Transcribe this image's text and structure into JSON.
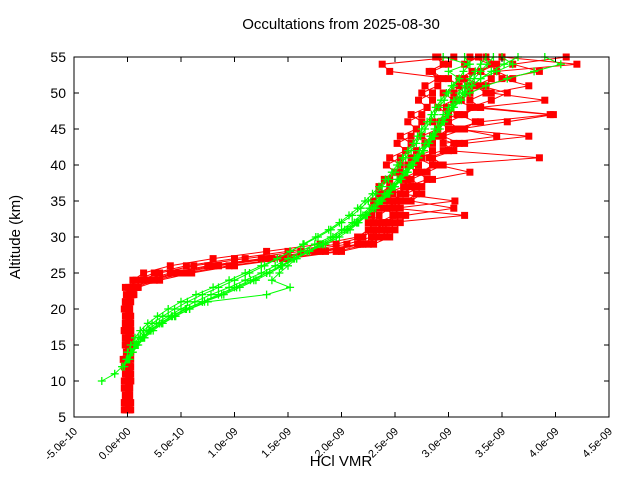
{
  "title": "Occultations from 2025-08-30",
  "axes": {
    "xlabel": "HCl VMR",
    "ylabel": "Altitude (km)",
    "x_tick_labels": [
      "-5.0e-10",
      "0.0e+00",
      "5.0e-10",
      "1.0e-09",
      "1.5e-09",
      "2.0e-09",
      "2.5e-09",
      "3.0e-09",
      "3.5e-09",
      "4.0e-09",
      "4.5e-09"
    ],
    "x_tick_values_1e9": [
      -0.5,
      0,
      0.5,
      1,
      1.5,
      2,
      2.5,
      3,
      3.5,
      4,
      4.5
    ],
    "y_tick_labels": [
      "5",
      "10",
      "15",
      "20",
      "25",
      "30",
      "35",
      "40",
      "45",
      "50",
      "55"
    ],
    "y_tick_values_km": [
      5,
      10,
      15,
      20,
      25,
      30,
      35,
      40,
      45,
      50,
      55
    ]
  },
  "chart_data": {
    "type": "line",
    "title": "Occultations from 2025-08-30",
    "xlabel": "HCl VMR",
    "ylabel": "Altitude (km)",
    "xlim_1e9": [
      -0.5,
      4.5
    ],
    "ylim_km": [
      5,
      55
    ],
    "grid": false,
    "legend": "none",
    "x_units": "mol/mol, labels in scientific notation",
    "series": [
      {
        "name": "occultation-profiles-red",
        "color": "#ff0000",
        "marker": "filled-square",
        "line": "solid",
        "profiles": [
          {
            "start_alt_km": 6,
            "step_km": 1,
            "vmr_1e9": [
              0.02,
              -0.03,
              0.01,
              -0.02,
              0.03,
              -0.01,
              0.02,
              -0.04,
              0.01,
              0.02,
              -0.02,
              0.03,
              -0.01,
              0.01,
              -0.03,
              0.02,
              0.04,
              -0.02,
              0.12,
              0.3,
              0.62,
              1.1,
              1.62,
              2.05,
              2.28,
              2.32,
              2.38,
              2.35,
              2.45,
              2.5,
              2.42,
              2.58,
              2.62,
              2.55,
              2.72,
              2.65,
              2.85,
              2.78,
              2.9,
              3.0,
              2.92,
              3.08,
              2.98,
              3.12,
              3.05,
              3.18,
              3.1,
              3.22,
              3.15,
              3.28
            ]
          },
          {
            "start_alt_km": 6,
            "step_km": 1,
            "vmr_1e9": [
              -0.02,
              0.03,
              -0.01,
              0.02,
              -0.03,
              0.01,
              0.03,
              -0.02,
              0.02,
              -0.01,
              0.03,
              -0.03,
              0.01,
              0.02,
              -0.02,
              0.01,
              0.05,
              0.08,
              0.25,
              0.55,
              0.95,
              1.45,
              1.95,
              2.25,
              2.4,
              2.45,
              2.5,
              2.55,
              2.48,
              2.6,
              2.7,
              2.62,
              2.8,
              2.72,
              2.9,
              2.82,
              3.0,
              3.1,
              2.95,
              3.15,
              3.25,
              3.1,
              3.3,
              3.2,
              3.35,
              3.25,
              3.4,
              3.3,
              3.45,
              3.35
            ]
          },
          {
            "start_alt_km": 6,
            "step_km": 1,
            "vmr_1e9": [
              0.01,
              -0.02,
              0.02,
              0.01,
              -0.01,
              0.02,
              -0.03,
              0.01,
              0.03,
              -0.02,
              0.01,
              -0.01,
              0.02,
              -0.02,
              0.01,
              0.03,
              -0.01,
              0.01,
              0.05,
              0.15,
              0.4,
              0.8,
              1.3,
              1.8,
              2.15,
              2.25,
              2.3,
              2.28,
              2.35,
              2.3,
              2.4,
              2.35,
              2.45,
              2.5,
              2.42,
              2.55,
              2.6,
              2.52,
              2.65,
              2.7,
              2.62,
              2.75,
              2.8,
              2.72,
              2.85,
              2.78,
              2.9,
              2.82,
              2.95,
              2.88
            ]
          },
          {
            "start_alt_km": 6,
            "step_km": 1,
            "vmr_1e9": [
              0.03,
              -0.01,
              0.02,
              -0.03,
              0.01,
              0.02,
              -0.02,
              0.03,
              -0.01,
              0.01,
              0.02,
              -0.03,
              0.03,
              -0.01,
              0.02,
              -0.02,
              0.06,
              0.1,
              0.3,
              0.6,
              1.0,
              1.5,
              2.0,
              2.3,
              2.45,
              2.5,
              2.55,
              2.6,
              3.05,
              2.65,
              2.75,
              2.7,
              2.85,
              3.2,
              2.9,
              3.85,
              3.0,
              3.15,
              3.75,
              3.05,
              3.3,
              3.95,
              3.2,
              3.4,
              3.55,
              3.3,
              3.6,
              3.45,
              4.2,
              3.5
            ]
          },
          {
            "start_alt_km": 6,
            "step_km": 1,
            "vmr_1e9": [
              -0.01,
              0.02,
              -0.02,
              0.01,
              0.03,
              -0.02,
              0.01,
              -0.01,
              0.02,
              0.03,
              -0.02,
              0.01,
              -0.01,
              0.02,
              0.01,
              -0.02,
              0.03,
              0.05,
              0.15,
              0.4,
              0.75,
              1.25,
              1.75,
              2.15,
              2.35,
              2.3,
              2.42,
              2.5,
              2.4,
              2.55,
              2.48,
              2.65,
              2.55,
              2.7,
              2.62,
              2.75,
              2.7,
              2.85,
              2.75,
              2.9,
              2.85,
              3.0,
              2.9,
              3.05,
              2.95,
              3.1,
              3.0,
              2.45,
              2.38,
              3.05
            ]
          },
          {
            "start_alt_km": 6,
            "step_km": 1,
            "vmr_1e9": [
              0.02,
              -0.02,
              0.01,
              0.02,
              -0.01,
              0.03,
              -0.02,
              0.01,
              0.02,
              -0.02,
              0.01,
              0.03,
              -0.01,
              0.02,
              -0.02,
              0.01,
              0.04,
              0.07,
              0.2,
              0.5,
              0.85,
              1.35,
              1.85,
              2.2,
              2.38,
              2.42,
              2.35,
              2.48,
              2.55,
              2.45,
              2.6,
              2.75,
              2.65,
              2.8,
              2.95,
              2.85,
              3.05,
              2.95,
              3.45,
              3.1,
              3.55,
              3.98,
              3.3,
              3.9,
              3.4,
              3.75,
              3.5,
              3.85,
              3.6,
              4.1
            ]
          },
          {
            "start_alt_km": 6,
            "step_km": 1,
            "vmr_1e9": [
              -0.03,
              0.01,
              -0.01,
              0.02,
              -0.02,
              0.01,
              0.02,
              -0.01,
              0.01,
              -0.02,
              0.02,
              0.01,
              -0.02,
              0.01,
              0.02,
              -0.01,
              0.02,
              0.04,
              0.08,
              0.25,
              0.55,
              1.0,
              1.5,
              1.95,
              2.2,
              2.3,
              2.25,
              2.35,
              2.3,
              2.4,
              2.35,
              2.45,
              2.4,
              2.5,
              2.55,
              2.45,
              2.6,
              2.65,
              2.55,
              2.7,
              2.75,
              2.65,
              2.8,
              2.85,
              2.75,
              2.9,
              2.95,
              2.85,
              3.0,
              2.9
            ]
          },
          {
            "start_alt_km": 6,
            "step_km": 1,
            "vmr_1e9": [
              0.01,
              0.02,
              -0.02,
              0.01,
              -0.01,
              0.02,
              0.01,
              -0.02,
              0.03,
              0.01,
              -0.01,
              0.02,
              -0.02,
              0.03,
              0.01,
              -0.01,
              0.05,
              0.09,
              0.18,
              0.45,
              0.8,
              1.3,
              1.8,
              2.18,
              2.32,
              2.38,
              2.45,
              3.15,
              2.5,
              3.06,
              2.55,
              2.68,
              2.6,
              2.75,
              2.85,
              2.7,
              2.95,
              3.05,
              2.85,
              3.1,
              3.0,
              3.15,
              3.25,
              3.05,
              3.2,
              3.35,
              3.15,
              3.3,
              3.4,
              3.2
            ]
          }
        ]
      },
      {
        "name": "occultation-profiles-green",
        "color": "#00ff00",
        "marker": "plus",
        "line": "solid",
        "profiles": [
          {
            "start_alt_km": 10,
            "step_km": 1,
            "vmr_1e9": [
              -0.24,
              -0.12,
              -0.05,
              0.0,
              0.03,
              0.07,
              0.12,
              0.18,
              0.27,
              0.38,
              0.5,
              0.63,
              0.78,
              0.95,
              1.1,
              1.25,
              1.38,
              1.5,
              1.62,
              1.75,
              1.9,
              2.0,
              2.1,
              2.18,
              2.26,
              2.33,
              2.4,
              2.46,
              2.52,
              2.58,
              2.63,
              2.68,
              2.73,
              2.78,
              2.83,
              2.87,
              2.91,
              2.95,
              3.0,
              3.05,
              3.1,
              3.15,
              3.2,
              3.25,
              3.3,
              3.35
            ]
          },
          {
            "start_alt_km": 13,
            "step_km": 1,
            "vmr_1e9": [
              0.02,
              0.05,
              0.1,
              0.16,
              0.24,
              0.33,
              0.45,
              0.58,
              0.72,
              0.9,
              1.05,
              1.2,
              1.33,
              1.45,
              1.58,
              1.7,
              1.85,
              1.98,
              2.08,
              2.16,
              2.24,
              2.32,
              2.38,
              2.45,
              2.5,
              2.56,
              2.62,
              2.67,
              2.72,
              2.77,
              2.82,
              2.86,
              2.9,
              2.95,
              3.0,
              3.04,
              3.1,
              3.16,
              3.22,
              3.3,
              3.45,
              3.6,
              3.5
            ]
          },
          {
            "start_alt_km": 12,
            "step_km": 1,
            "vmr_1e9": [
              -0.03,
              0.0,
              0.04,
              0.09,
              0.15,
              0.22,
              0.32,
              0.44,
              0.58,
              0.75,
              1.3,
              1.52,
              1.35,
              1.42,
              1.5,
              1.58,
              1.68,
              1.8,
              1.92,
              2.03,
              2.12,
              2.2,
              2.28,
              2.35,
              2.42,
              2.48,
              2.54,
              2.6,
              2.65,
              2.7,
              2.76,
              2.81,
              2.86,
              2.9,
              2.94,
              2.98,
              3.03,
              3.08,
              3.13,
              3.18,
              3.24,
              3.3,
              3.36,
              3.42
            ]
          },
          {
            "start_alt_km": 14,
            "step_km": 1,
            "vmr_1e9": [
              0.0,
              0.03,
              0.07,
              0.12,
              0.19,
              0.28,
              0.38,
              0.5,
              0.64,
              0.8,
              0.95,
              1.1,
              1.25,
              1.4,
              1.52,
              1.65,
              1.78,
              1.9,
              2.0,
              2.1,
              2.18,
              2.25,
              2.32,
              2.38,
              2.44,
              2.5,
              2.55,
              2.6,
              2.65,
              2.7,
              2.74,
              2.78,
              2.83,
              2.87,
              2.91,
              2.96,
              3.0,
              3.05,
              3.1,
              3.14,
              3.2,
              3.15
            ]
          },
          {
            "start_alt_km": 13,
            "step_km": 1,
            "vmr_1e9": [
              0.01,
              0.04,
              0.08,
              0.14,
              0.21,
              0.3,
              0.42,
              0.55,
              0.7,
              0.88,
              1.02,
              1.18,
              1.3,
              1.43,
              1.55,
              1.68,
              1.82,
              1.95,
              2.05,
              2.14,
              2.22,
              2.3,
              2.36,
              2.43,
              2.49,
              2.55,
              2.6,
              2.66,
              2.71,
              2.76,
              2.81,
              2.85,
              2.9,
              2.94,
              2.99,
              3.05,
              3.12,
              3.2,
              3.35,
              3.55,
              3.8,
              4.05,
              3.9
            ]
          },
          {
            "start_alt_km": 12,
            "step_km": 1,
            "vmr_1e9": [
              -0.05,
              -0.01,
              0.03,
              0.08,
              0.14,
              0.2,
              0.3,
              0.41,
              0.54,
              0.7,
              0.85,
              1.0,
              1.15,
              1.3,
              1.44,
              1.56,
              1.7,
              1.83,
              1.95,
              2.06,
              2.15,
              2.23,
              2.3,
              2.37,
              2.44,
              2.5,
              2.56,
              2.61,
              2.67,
              2.72,
              2.77,
              2.82,
              2.87,
              2.92,
              2.96,
              3.0,
              3.05,
              3.1,
              3.15,
              3.22,
              3.3,
              3.4,
              3.52,
              3.65
            ]
          },
          {
            "start_alt_km": 15,
            "step_km": 1,
            "vmr_1e9": [
              0.06,
              0.1,
              0.15,
              0.23,
              0.33,
              0.44,
              0.56,
              0.7,
              0.85,
              1.0,
              1.14,
              1.28,
              1.4,
              1.52,
              1.64,
              1.76,
              1.88,
              1.98,
              2.07,
              2.15,
              2.22,
              2.29,
              2.35,
              2.41,
              2.47,
              2.52,
              2.57,
              2.62,
              2.67,
              2.71,
              2.75,
              2.8,
              2.84,
              2.88,
              2.93,
              2.98,
              3.03,
              3.1,
              3.0,
              3.18,
              2.95
            ]
          }
        ]
      }
    ]
  },
  "colors": {
    "background": "#ffffff",
    "frame": "#000000",
    "series_red": "#ff0000",
    "series_green": "#00ff00"
  }
}
